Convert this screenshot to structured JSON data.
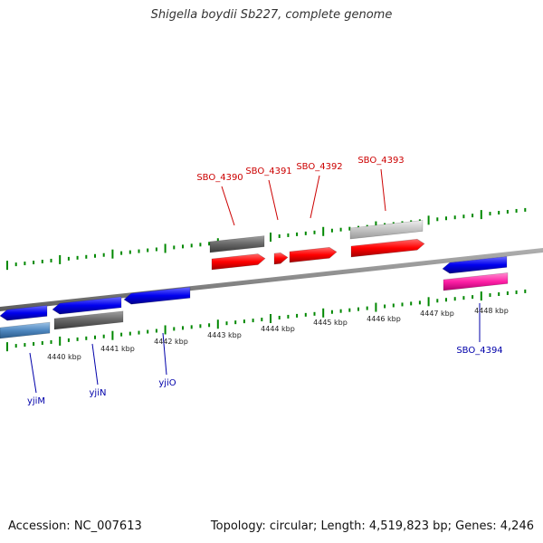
{
  "title": "Shigella boydii Sb227, complete genome",
  "footer": {
    "accession": "Accession: NC_007613",
    "summary": "Topology: circular; Length: 4,519,823 bp; Genes: 4,246"
  },
  "scale": {
    "unit": "kbp",
    "labels": [
      "4440 kbp",
      "4441 kbp",
      "4442 kbp",
      "4443 kbp",
      "4444 kbp",
      "4445 kbp",
      "4446 kbp",
      "4447 kbp",
      "4448 kbp"
    ]
  },
  "genes": [
    {
      "name": "yjiM",
      "strand": "reverse"
    },
    {
      "name": "yjiN",
      "strand": "reverse"
    },
    {
      "name": "yjiO",
      "strand": "reverse"
    },
    {
      "name": "SBO_4390",
      "strand": "forward"
    },
    {
      "name": "SBO_4391",
      "strand": "forward"
    },
    {
      "name": "SBO_4392",
      "strand": "forward"
    },
    {
      "name": "SBO_4393",
      "strand": "forward"
    },
    {
      "name": "SBO_4394",
      "strand": "reverse"
    }
  ],
  "colors": {
    "forward_gene": "#ff0000",
    "reverse_gene": "#0000ee",
    "forward_label": "#cc0000",
    "reverse_label": "#0000aa",
    "tick": "#008800",
    "backbone": "#888888"
  }
}
